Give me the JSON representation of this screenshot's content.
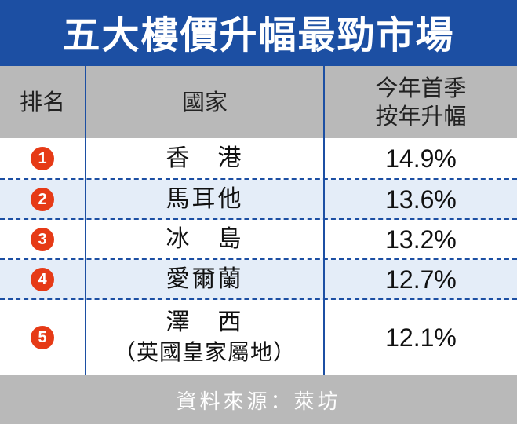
{
  "title": "五大樓價升幅最勁市場",
  "colors": {
    "title_bg": "#1c4fa3",
    "header_bg": "#b9b9b9",
    "row_alt": "#e4edf8",
    "badge": "#e63a16"
  },
  "chart_data": {
    "type": "table",
    "columns": [
      "排名",
      "國家",
      "今年首季按年升幅"
    ],
    "header": {
      "rank": "排名",
      "country": "國家",
      "change_line1": "今年首季",
      "change_line2": "按年升幅"
    },
    "rows": [
      {
        "rank": "1",
        "country": "香　港",
        "change": "14.9%"
      },
      {
        "rank": "2",
        "country": "馬耳他",
        "change": "13.6%"
      },
      {
        "rank": "3",
        "country": "冰　島",
        "change": "13.2%"
      },
      {
        "rank": "4",
        "country": "愛爾蘭",
        "change": "12.7%"
      },
      {
        "rank": "5",
        "country": "澤　西",
        "country_note": "（英國皇家屬地）",
        "change": "12.1%"
      }
    ],
    "source": "資料來源：萊坊"
  }
}
